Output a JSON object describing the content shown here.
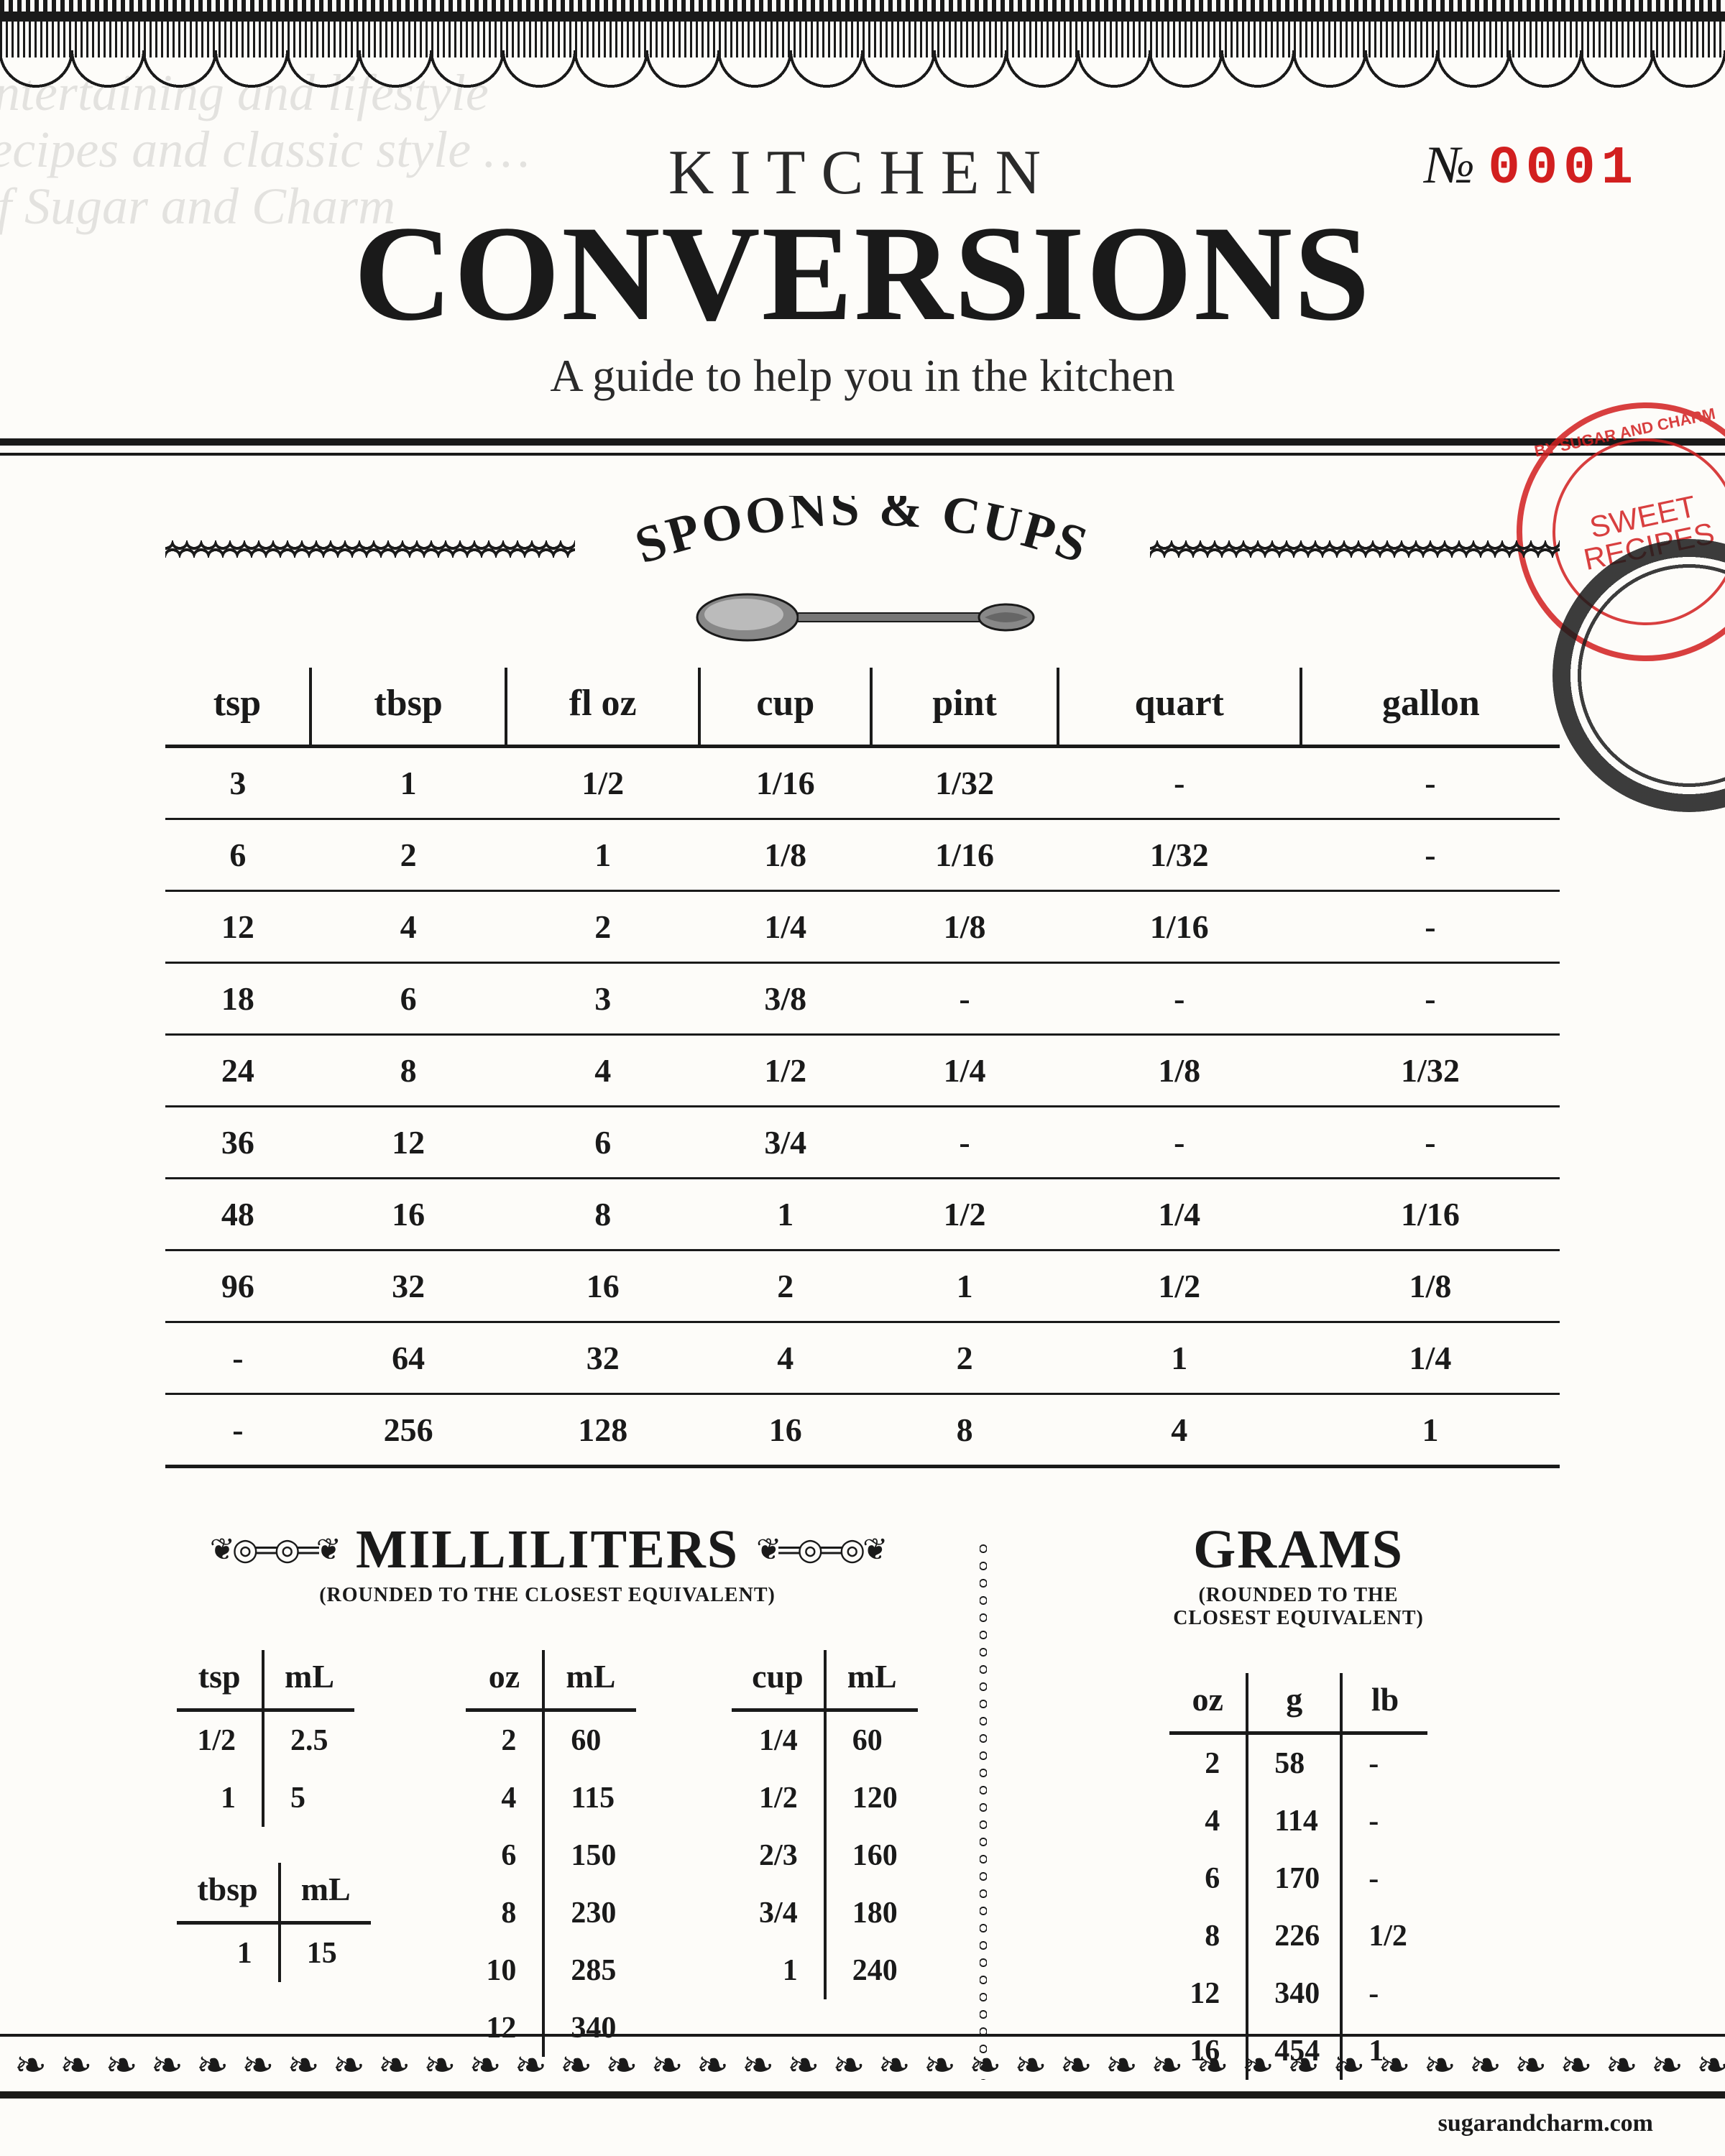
{
  "colors": {
    "ink": "#1a1a1a",
    "paper": "#fdfcf9",
    "red": "#d21f1f"
  },
  "watermark_lines": [
    "entertaining and lifestyle",
    "recipes and classic style …",
    "of Sugar and Charm"
  ],
  "header": {
    "kitchen": "KITCHEN",
    "conversions": "CONVERSIONS",
    "subtitle": "A guide to help you in the kitchen",
    "serial_label": "№",
    "serial_number": "0001"
  },
  "stamp": {
    "center": "SWEET RECIPES",
    "ring": "BY SUGAR AND CHARM"
  },
  "spoons_cups": {
    "title": "SPOONS & CUPS",
    "columns": [
      "tsp",
      "tbsp",
      "fl oz",
      "cup",
      "pint",
      "quart",
      "gallon"
    ],
    "rows": [
      [
        "3",
        "1",
        "1/2",
        "1/16",
        "1/32",
        "-",
        "-"
      ],
      [
        "6",
        "2",
        "1",
        "1/8",
        "1/16",
        "1/32",
        "-"
      ],
      [
        "12",
        "4",
        "2",
        "1/4",
        "1/8",
        "1/16",
        "-"
      ],
      [
        "18",
        "6",
        "3",
        "3/8",
        "-",
        "-",
        "-"
      ],
      [
        "24",
        "8",
        "4",
        "1/2",
        "1/4",
        "1/8",
        "1/32"
      ],
      [
        "36",
        "12",
        "6",
        "3/4",
        "-",
        "-",
        "-"
      ],
      [
        "48",
        "16",
        "8",
        "1",
        "1/2",
        "1/4",
        "1/16"
      ],
      [
        "96",
        "32",
        "16",
        "2",
        "1",
        "1/2",
        "1/8"
      ],
      [
        "-",
        "64",
        "32",
        "4",
        "2",
        "1",
        "1/4"
      ],
      [
        "-",
        "256",
        "128",
        "16",
        "8",
        "4",
        "1"
      ]
    ]
  },
  "milliliters": {
    "title": "MILLILITERS",
    "note": "(ROUNDED TO THE CLOSEST EQUIVALENT)",
    "tsp_ml": {
      "columns": [
        "tsp",
        "mL"
      ],
      "rows": [
        [
          "1/2",
          "2.5"
        ],
        [
          "1",
          "5"
        ]
      ]
    },
    "tbsp_ml": {
      "columns": [
        "tbsp",
        "mL"
      ],
      "rows": [
        [
          "1",
          "15"
        ]
      ]
    },
    "oz_ml": {
      "columns": [
        "oz",
        "mL"
      ],
      "rows": [
        [
          "2",
          "60"
        ],
        [
          "4",
          "115"
        ],
        [
          "6",
          "150"
        ],
        [
          "8",
          "230"
        ],
        [
          "10",
          "285"
        ],
        [
          "12",
          "340"
        ]
      ]
    },
    "cup_ml": {
      "columns": [
        "cup",
        "mL"
      ],
      "rows": [
        [
          "1/4",
          "60"
        ],
        [
          "1/2",
          "120"
        ],
        [
          "2/3",
          "160"
        ],
        [
          "3/4",
          "180"
        ],
        [
          "1",
          "240"
        ]
      ]
    }
  },
  "grams": {
    "title": "GRAMS",
    "note": "(ROUNDED TO THE CLOSEST EQUIVALENT)",
    "table": {
      "columns": [
        "oz",
        "g",
        "lb"
      ],
      "rows": [
        [
          "2",
          "58",
          "-"
        ],
        [
          "4",
          "114",
          "-"
        ],
        [
          "6",
          "170",
          "-"
        ],
        [
          "8",
          "226",
          "1/2"
        ],
        [
          "12",
          "340",
          "-"
        ],
        [
          "16",
          "454",
          "1"
        ]
      ]
    }
  },
  "footer_url": "sugarandcharm.com"
}
